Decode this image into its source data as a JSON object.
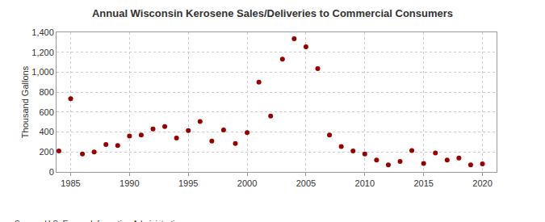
{
  "chart_data": {
    "type": "scatter",
    "title": "Annual Wisconsin Kerosene Sales/Deliveries to Commercial Consumers",
    "y_label": "Thousand Gallons",
    "source": "Source: U.S. Energy Information Administration",
    "x": [
      1984,
      1985,
      1986,
      1987,
      1988,
      1989,
      1990,
      1991,
      1992,
      1993,
      1994,
      1995,
      1996,
      1997,
      1998,
      1999,
      2000,
      2001,
      2002,
      2003,
      2004,
      2005,
      2006,
      2007,
      2008,
      2009,
      2010,
      2011,
      2012,
      2013,
      2014,
      2015,
      2016,
      2017,
      2018,
      2019,
      2020
    ],
    "values": [
      210,
      735,
      180,
      200,
      275,
      265,
      360,
      370,
      430,
      455,
      340,
      415,
      505,
      310,
      420,
      285,
      395,
      900,
      560,
      1130,
      1335,
      1255,
      1035,
      370,
      255,
      210,
      180,
      120,
      70,
      105,
      215,
      85,
      190,
      120,
      140,
      70,
      80
    ],
    "color": "#990000",
    "marker": "circle",
    "xlim": [
      1983.8,
      2021.2
    ],
    "xticks": [
      1985,
      1990,
      1995,
      2000,
      2005,
      2010,
      2015,
      2020
    ],
    "ylim": [
      0,
      1400
    ],
    "yticks": [
      0,
      200,
      400,
      600,
      800,
      {
        "value": 1000,
        "label": "1,000"
      },
      {
        "value": 1200,
        "label": "1,200"
      },
      {
        "value": 1400,
        "label": "1,400"
      }
    ],
    "grid": true
  }
}
